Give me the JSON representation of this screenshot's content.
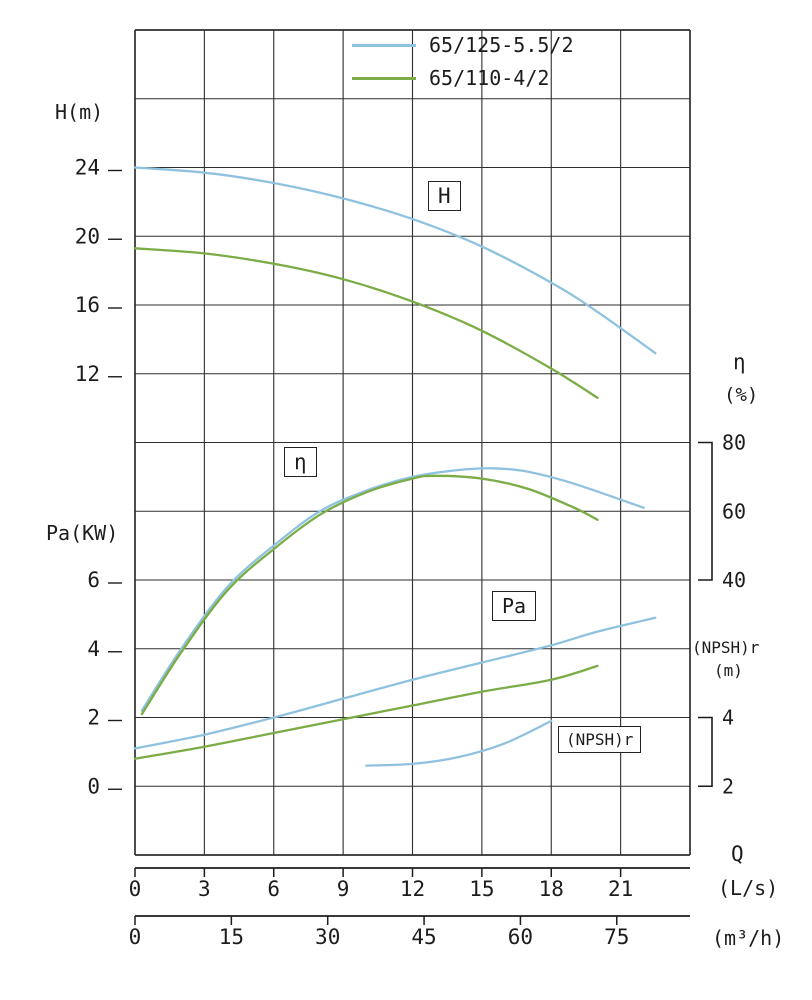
{
  "colors": {
    "blue": "#8fc2de",
    "green": "#7cac45",
    "grid": "#2e2e2e",
    "text": "#1c1c1c"
  },
  "legend": {
    "items": [
      {
        "label": "65/125-5.5/2",
        "color": "blue"
      },
      {
        "label": "65/110-4/2",
        "color": "green"
      }
    ]
  },
  "labels": {
    "h_axis": "H(m)",
    "pa_axis": "Pa(KW)",
    "eta_axis": "η",
    "eta_unit": "(%)",
    "npsh_axis": "(NPSH)r",
    "npsh_unit": "(m)",
    "q": "Q",
    "ls_unit": "(L/s)",
    "m3h_unit": "(m³/h)"
  },
  "curve_labels": {
    "h": "H",
    "eta": "η",
    "pa": "Pa",
    "npsh": "(NPSH)r"
  },
  "chart_data": {
    "type": "line",
    "x_axis": {
      "label": "Q",
      "unit_primary": "(L/s)",
      "unit_secondary": "(m³/h)",
      "range_ls": [
        0,
        24
      ],
      "ticks_ls": [
        0,
        3,
        6,
        9,
        12,
        15,
        18,
        21
      ],
      "ticks_m3h": [
        0,
        15,
        30,
        45,
        60,
        75
      ]
    },
    "y_axes": {
      "H": {
        "label": "H(m)",
        "ticks": [
          24,
          20,
          16,
          12
        ],
        "top_value": 24,
        "units_per_row": 4,
        "top_row": 2
      },
      "Pa": {
        "label": "Pa(KW)",
        "ticks": [
          6,
          4,
          2,
          0
        ],
        "top_value": 6,
        "units_per_row": 2,
        "top_row": 8
      },
      "eta": {
        "label": "η (%)",
        "ticks": [
          80,
          60,
          40
        ],
        "top_value": 80,
        "units_per_row": 20,
        "top_row": 6
      },
      "NPSH": {
        "label": "(NPSH)r (m)",
        "ticks": [
          4,
          2
        ],
        "top_value": 4,
        "units_per_row": 2,
        "top_row": 10
      }
    },
    "grid": {
      "rows": 12,
      "cols": 8
    },
    "series": [
      {
        "name": "H 65/125-5.5/2",
        "axis": "H",
        "color": "blue",
        "points": [
          [
            0,
            24
          ],
          [
            3,
            23.7
          ],
          [
            6,
            23.1
          ],
          [
            9,
            22.2
          ],
          [
            12,
            21.0
          ],
          [
            15,
            19.4
          ],
          [
            18,
            17.3
          ],
          [
            20,
            15.6
          ],
          [
            22.5,
            13.2
          ]
        ]
      },
      {
        "name": "H 65/110-4/2",
        "axis": "H",
        "color": "green",
        "points": [
          [
            0,
            19.3
          ],
          [
            3,
            19.0
          ],
          [
            6,
            18.4
          ],
          [
            9,
            17.5
          ],
          [
            12,
            16.2
          ],
          [
            15,
            14.5
          ],
          [
            18,
            12.3
          ],
          [
            20,
            10.6
          ]
        ]
      },
      {
        "name": "eta 65/125-5.5/2",
        "axis": "eta",
        "color": "blue",
        "points": [
          [
            0.3,
            2
          ],
          [
            2,
            20
          ],
          [
            4,
            38
          ],
          [
            6,
            50
          ],
          [
            8,
            60
          ],
          [
            10,
            66
          ],
          [
            12,
            70
          ],
          [
            14,
            72
          ],
          [
            15.5,
            72.5
          ],
          [
            17,
            71.5
          ],
          [
            19,
            68
          ],
          [
            22,
            61
          ]
        ]
      },
      {
        "name": "eta 65/110-4/2",
        "axis": "eta",
        "color": "green",
        "points": [
          [
            0.3,
            1
          ],
          [
            2,
            19
          ],
          [
            4,
            37
          ],
          [
            6,
            49
          ],
          [
            8,
            59
          ],
          [
            10,
            65.5
          ],
          [
            12,
            69.5
          ],
          [
            13,
            70.3
          ],
          [
            15,
            69.5
          ],
          [
            17,
            66.5
          ],
          [
            19,
            61
          ],
          [
            20,
            57.5
          ]
        ]
      },
      {
        "name": "Pa 65/125-5.5/2",
        "axis": "Pa",
        "color": "blue",
        "points": [
          [
            0,
            1.1
          ],
          [
            3,
            1.5
          ],
          [
            6,
            2.0
          ],
          [
            9,
            2.55
          ],
          [
            12,
            3.1
          ],
          [
            15,
            3.6
          ],
          [
            18,
            4.1
          ],
          [
            20,
            4.5
          ],
          [
            22.5,
            4.9
          ]
        ]
      },
      {
        "name": "Pa 65/110-4/2",
        "axis": "Pa",
        "color": "green",
        "points": [
          [
            0,
            0.8
          ],
          [
            3,
            1.15
          ],
          [
            6,
            1.55
          ],
          [
            9,
            1.95
          ],
          [
            12,
            2.35
          ],
          [
            15,
            2.75
          ],
          [
            18,
            3.1
          ],
          [
            20,
            3.5
          ]
        ]
      },
      {
        "name": "NPSHr 65/125-5.5/2",
        "axis": "NPSH",
        "color": "blue",
        "points": [
          [
            10,
            2.6
          ],
          [
            12,
            2.65
          ],
          [
            14,
            2.85
          ],
          [
            16,
            3.25
          ],
          [
            18,
            3.9
          ]
        ]
      }
    ]
  }
}
